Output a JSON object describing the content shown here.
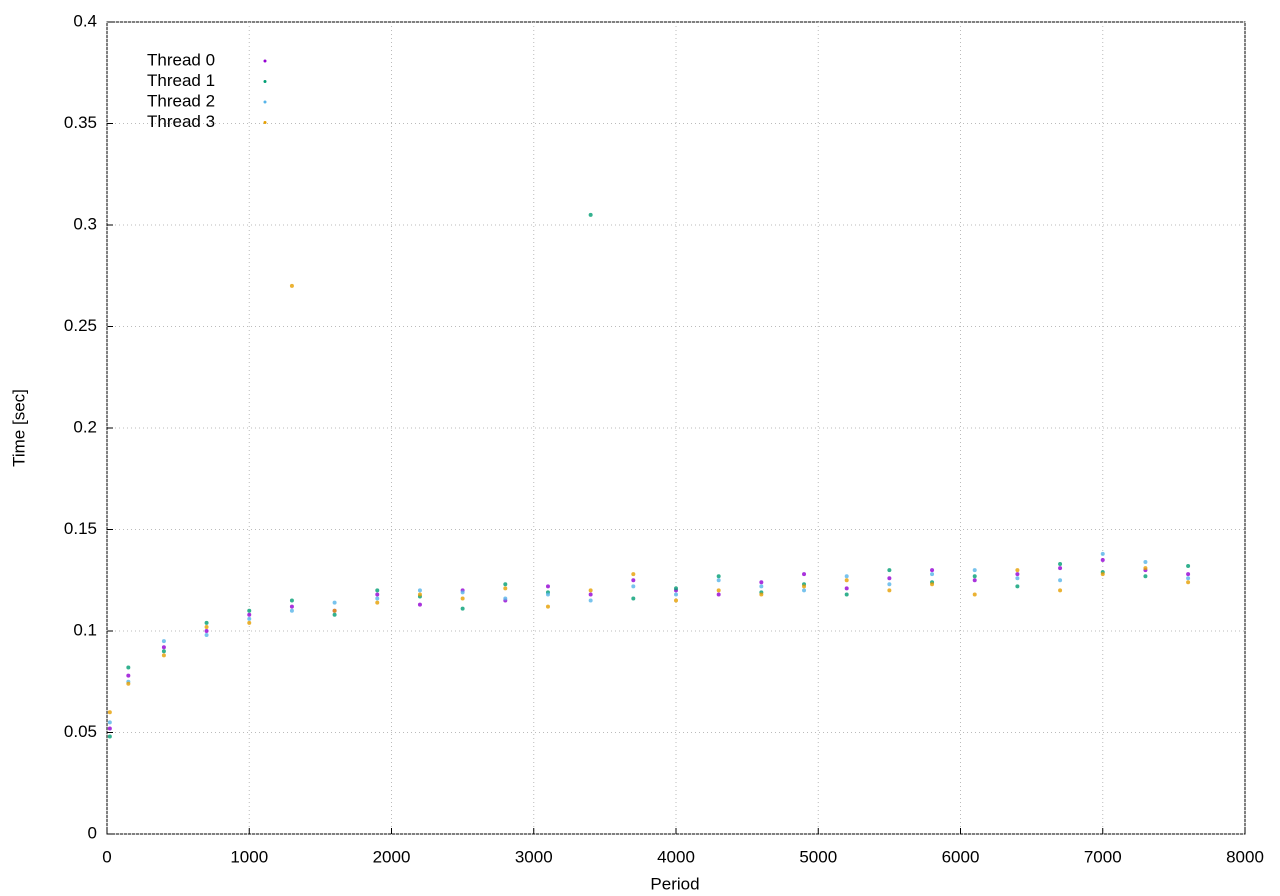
{
  "chart_data": {
    "type": "scatter",
    "xlabel": "Period",
    "ylabel": "Time [sec]",
    "x": [
      20,
      150,
      400,
      700,
      1000,
      1300,
      1600,
      1900,
      2200,
      2500,
      2800,
      3100,
      3400,
      3700,
      4000,
      4300,
      4600,
      4900,
      5200,
      5500,
      5800,
      6100,
      6400,
      6700,
      7000,
      7300,
      7600
    ],
    "series": [
      {
        "name": "Thread 0",
        "color": "#9400d3",
        "values": [
          0.052,
          0.078,
          0.092,
          0.1,
          0.108,
          0.112,
          0.11,
          0.118,
          0.113,
          0.12,
          0.115,
          0.122,
          0.118,
          0.125,
          0.12,
          0.118,
          0.124,
          0.128,
          0.121,
          0.126,
          0.13,
          0.125,
          0.128,
          0.131,
          0.135,
          0.13,
          0.128
        ]
      },
      {
        "name": "Thread 1",
        "color": "#009e73",
        "values": [
          0.048,
          0.082,
          0.09,
          0.104,
          0.11,
          0.115,
          0.108,
          0.12,
          0.117,
          0.111,
          0.123,
          0.119,
          0.305,
          0.116,
          0.121,
          0.127,
          0.119,
          0.123,
          0.118,
          0.13,
          0.124,
          0.127,
          0.122,
          0.133,
          0.129,
          0.127,
          0.132
        ]
      },
      {
        "name": "Thread 2",
        "color": "#56b4e9",
        "values": [
          0.055,
          0.075,
          0.095,
          0.098,
          0.106,
          0.11,
          0.114,
          0.116,
          0.12,
          0.119,
          0.116,
          0.118,
          0.115,
          0.122,
          0.118,
          0.125,
          0.122,
          0.12,
          0.127,
          0.123,
          0.128,
          0.13,
          0.126,
          0.125,
          0.138,
          0.134,
          0.126
        ]
      },
      {
        "name": "Thread 3",
        "color": "#e69f00",
        "values": [
          0.06,
          0.074,
          0.088,
          0.102,
          0.104,
          0.27,
          0.11,
          0.114,
          0.118,
          0.116,
          0.121,
          0.112,
          0.12,
          0.128,
          0.115,
          0.12,
          0.118,
          0.122,
          0.125,
          0.12,
          0.123,
          0.118,
          0.13,
          0.12,
          0.128,
          0.131,
          0.124
        ]
      }
    ],
    "xlim": [
      0,
      8000
    ],
    "xticks": [
      0,
      1000,
      2000,
      3000,
      4000,
      5000,
      6000,
      7000,
      8000
    ],
    "ylim": [
      0,
      0.4
    ],
    "yticks": [
      0,
      0.05,
      0.1,
      0.15,
      0.2,
      0.25,
      0.3,
      0.35,
      0.4
    ],
    "grid": true,
    "legend": "top-left"
  }
}
